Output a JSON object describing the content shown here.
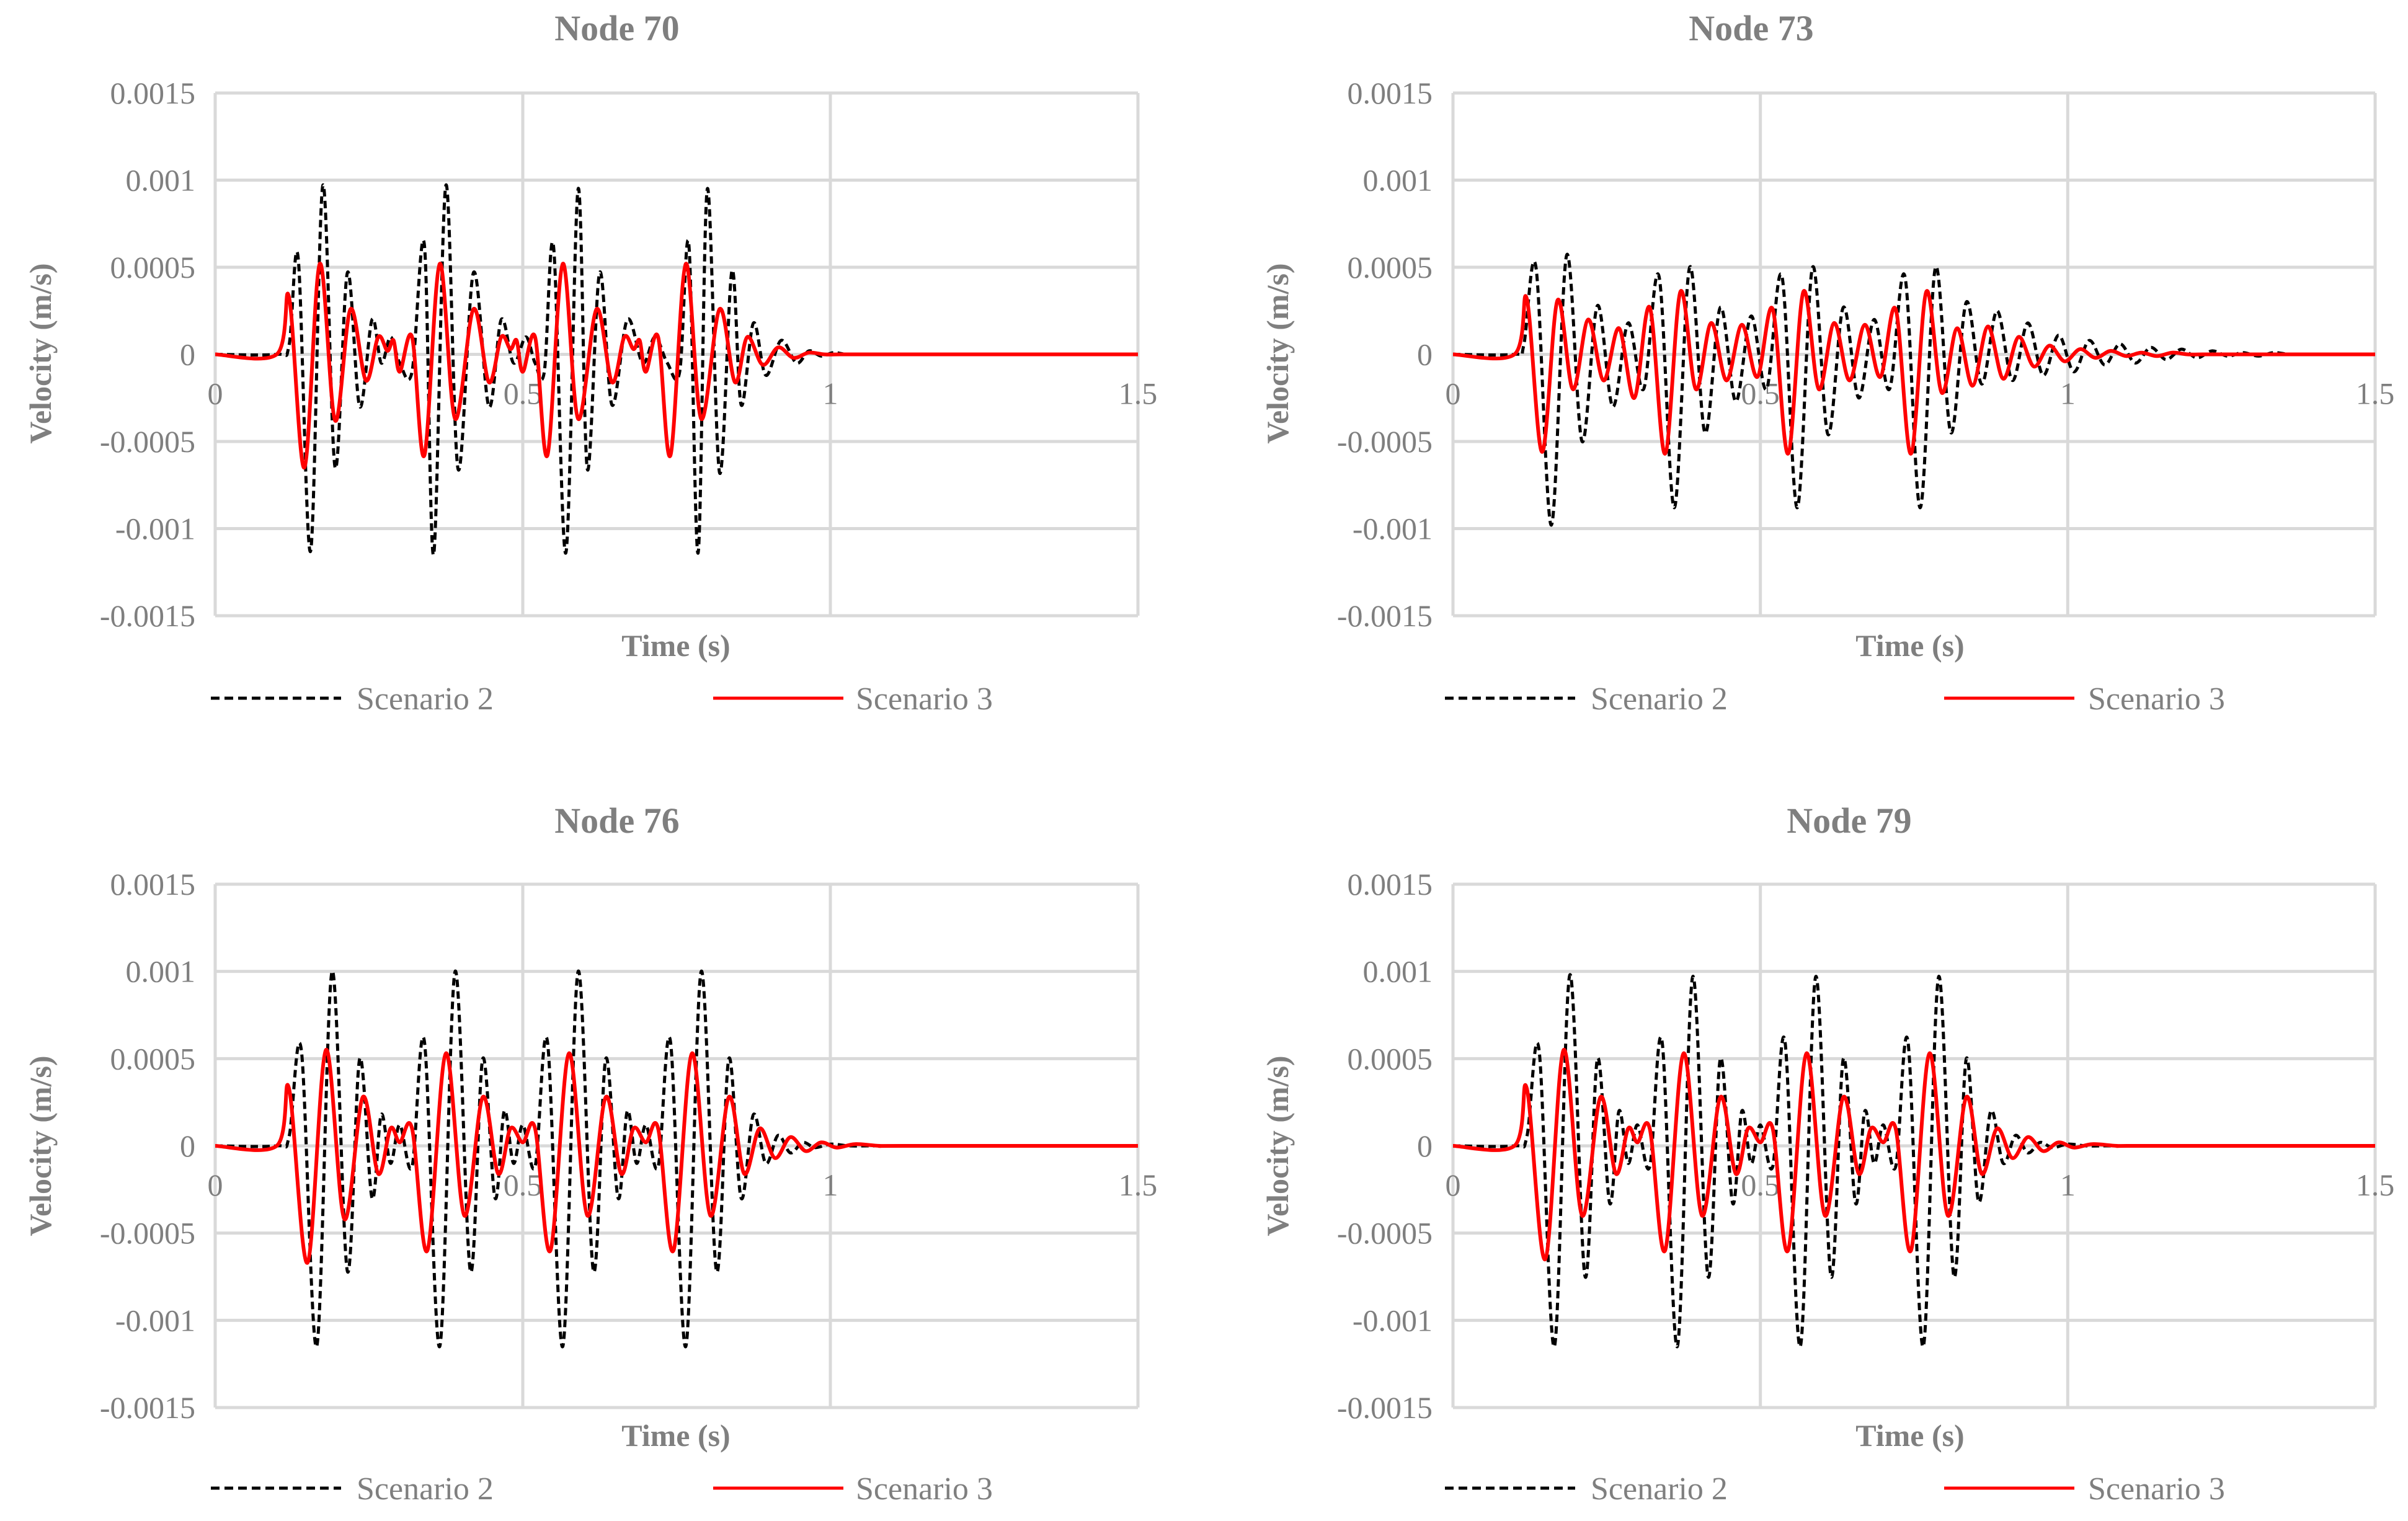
{
  "chart_data": [
    {
      "type": "line",
      "title": "Node 70",
      "xlabel": "Time (s)",
      "ylabel": "Velocity (m/s)",
      "xlim": [
        0,
        1.5
      ],
      "ylim": [
        -0.0015,
        0.0015
      ],
      "xticks": [
        "0",
        "0.5",
        "1",
        "1.5"
      ],
      "yticks": [
        "0.0015",
        "0.001",
        "0.0005",
        "0",
        "-0.0005",
        "-0.001",
        "-0.0015"
      ],
      "legend_position": "bottom",
      "grid": true,
      "series": [
        {
          "name": "Scenario 2",
          "color": "#000000",
          "style": "dashed",
          "x": [
            0,
            0.1,
            0.12,
            0.135,
            0.155,
            0.175,
            0.195,
            0.215,
            0.235,
            0.255,
            0.27,
            0.285,
            0.3,
            0.32,
            0.34,
            0.355,
            0.375,
            0.395,
            0.42,
            0.445,
            0.465,
            0.485,
            0.505,
            0.52,
            0.535,
            0.55,
            0.57,
            0.59,
            0.605,
            0.625,
            0.645,
            0.67,
            0.695,
            0.715,
            0.735,
            0.755,
            0.77,
            0.785,
            0.8,
            0.82,
            0.84,
            0.855,
            0.875,
            0.895,
            0.92,
            0.945,
            0.965,
            0.985,
            1.005,
            1.025,
            1.045,
            1.065,
            1.085,
            1.105,
            1.125,
            1.145,
            1.165,
            1.2,
            1.25,
            1.5
          ],
          "y": [
            0,
            0,
            5e-05,
            0.00055,
            -0.00113,
            0.00097,
            -0.00065,
            0.00047,
            -0.0003,
            0.0002,
            -5e-05,
            0.0001,
            -5e-05,
            -0.0001,
            0.00063,
            -0.00115,
            0.00097,
            -0.00066,
            0.00047,
            -0.0003,
            0.0002,
            -5e-05,
            0.0001,
            -5e-05,
            -0.0001,
            0.00062,
            -0.00114,
            0.00095,
            -0.00066,
            0.00047,
            -0.00029,
            0.0002,
            -5e-05,
            0.0001,
            -5e-05,
            -0.0001,
            0.00063,
            -0.00114,
            0.00095,
            -0.00068,
            0.00048,
            -0.00029,
            0.00018,
            -0.00012,
            8e-05,
            -5e-05,
            2e-05,
            -1e-05,
            1e-05,
            0,
            0,
            0,
            0,
            0,
            0,
            0,
            0,
            0,
            0,
            0
          ]
        },
        {
          "name": "Scenario 3",
          "color": "#ff0000",
          "style": "solid",
          "x": [
            0,
            0.1,
            0.12,
            0.145,
            0.17,
            0.195,
            0.22,
            0.245,
            0.265,
            0.28,
            0.29,
            0.3,
            0.32,
            0.34,
            0.365,
            0.39,
            0.42,
            0.445,
            0.465,
            0.48,
            0.49,
            0.5,
            0.52,
            0.54,
            0.565,
            0.59,
            0.62,
            0.645,
            0.665,
            0.68,
            0.69,
            0.7,
            0.72,
            0.74,
            0.765,
            0.79,
            0.82,
            0.845,
            0.865,
            0.89,
            0.915,
            0.94,
            0.965,
            0.99,
            1.015,
            1.04,
            1.065,
            1.1,
            1.15,
            1.5
          ],
          "y": [
            0,
            0,
            0.00033,
            -0.00065,
            0.00052,
            -0.00038,
            0.00026,
            -0.00015,
            0.0001,
            2e-05,
            8e-05,
            -0.0001,
            0.0001,
            -0.00058,
            0.00052,
            -0.00037,
            0.00026,
            -0.00016,
            0.0001,
            3e-05,
            8e-05,
            -0.0001,
            0.0001,
            -0.00058,
            0.00052,
            -0.00037,
            0.00026,
            -0.00016,
            0.0001,
            3e-05,
            8e-05,
            -0.0001,
            0.0001,
            -0.00058,
            0.00052,
            -0.00037,
            0.00026,
            -0.00016,
            0.0001,
            -6e-05,
            4e-05,
            -2e-05,
            1e-05,
            0,
            0,
            0,
            0,
            0,
            0,
            0
          ]
        }
      ]
    },
    {
      "type": "line",
      "title": "Node 73",
      "xlabel": "Time (s)",
      "ylabel": "Velocity (m/s)",
      "xlim": [
        0,
        1.5
      ],
      "ylim": [
        -0.0015,
        0.0015
      ],
      "xticks": [
        "0",
        "0.5",
        "1",
        "1.5"
      ],
      "yticks": [
        "0.0015",
        "0.001",
        "0.0005",
        "0",
        "-0.0005",
        "-0.001",
        "-0.0015"
      ],
      "legend_position": "bottom",
      "grid": true,
      "series": [
        {
          "name": "Scenario 2",
          "color": "#000000",
          "style": "dashed",
          "x": [
            0,
            0.1,
            0.115,
            0.135,
            0.16,
            0.185,
            0.21,
            0.235,
            0.26,
            0.285,
            0.31,
            0.335,
            0.36,
            0.385,
            0.41,
            0.435,
            0.46,
            0.485,
            0.51,
            0.535,
            0.56,
            0.585,
            0.61,
            0.635,
            0.66,
            0.685,
            0.71,
            0.735,
            0.76,
            0.785,
            0.81,
            0.835,
            0.86,
            0.885,
            0.91,
            0.935,
            0.96,
            0.985,
            1.01,
            1.035,
            1.06,
            1.085,
            1.11,
            1.135,
            1.16,
            1.185,
            1.21,
            1.235,
            1.26,
            1.285,
            1.31,
            1.335,
            1.36,
            1.385,
            1.41,
            1.435,
            1.46,
            1.5
          ],
          "y": [
            0,
            0,
            5e-05,
            0.0005,
            -0.00098,
            0.00057,
            -0.0005,
            0.00028,
            -0.0003,
            0.00018,
            -0.0002,
            0.00045,
            -0.00088,
            0.0005,
            -0.00045,
            0.00027,
            -0.00027,
            0.00022,
            -0.0002,
            0.00045,
            -0.00088,
            0.0005,
            -0.00046,
            0.00027,
            -0.00025,
            0.0002,
            -0.0002,
            0.00045,
            -0.00088,
            0.0005,
            -0.00045,
            0.0003,
            -0.00017,
            0.00025,
            -0.00015,
            0.00018,
            -0.00012,
            0.00011,
            -0.0001,
            8e-05,
            -6e-05,
            6e-05,
            -5e-05,
            4e-05,
            -3e-05,
            3e-05,
            -2e-05,
            2e-05,
            -1e-05,
            1e-05,
            -1e-05,
            1e-05,
            0,
            0,
            0,
            0,
            0,
            0
          ]
        },
        {
          "name": "Scenario 3",
          "color": "#ff0000",
          "style": "solid",
          "x": [
            0,
            0.1,
            0.12,
            0.145,
            0.17,
            0.195,
            0.22,
            0.245,
            0.27,
            0.295,
            0.32,
            0.345,
            0.37,
            0.395,
            0.42,
            0.445,
            0.47,
            0.495,
            0.52,
            0.545,
            0.57,
            0.595,
            0.62,
            0.645,
            0.67,
            0.695,
            0.72,
            0.745,
            0.77,
            0.795,
            0.82,
            0.845,
            0.87,
            0.895,
            0.92,
            0.945,
            0.97,
            0.995,
            1.02,
            1.045,
            1.07,
            1.095,
            1.12,
            1.145,
            1.17,
            1.195,
            1.22,
            1.245,
            1.27,
            1.3,
            1.35,
            1.4,
            1.5
          ],
          "y": [
            0,
            0,
            0.00032,
            -0.00056,
            0.00031,
            -0.0002,
            0.0002,
            -0.00015,
            0.00015,
            -0.00025,
            0.00027,
            -0.00057,
            0.00036,
            -0.0002,
            0.00018,
            -0.00015,
            0.00017,
            -0.00013,
            0.00026,
            -0.00057,
            0.00036,
            -0.0002,
            0.00018,
            -0.00015,
            0.00017,
            -0.00013,
            0.00026,
            -0.00057,
            0.00036,
            -0.00022,
            0.00015,
            -0.00018,
            0.00016,
            -0.00014,
            0.0001,
            -7e-05,
            5e-05,
            -4e-05,
            3e-05,
            -2e-05,
            2e-05,
            -1e-05,
            1e-05,
            -1e-05,
            1e-05,
            0,
            0,
            0,
            0,
            0,
            0,
            0,
            0
          ]
        }
      ]
    },
    {
      "type": "line",
      "title": "Node 76",
      "xlabel": "Time (s)",
      "ylabel": "Velocity (m/s)",
      "xlim": [
        0,
        1.5
      ],
      "ylim": [
        -0.0015,
        0.0015
      ],
      "xticks": [
        "0",
        "0.5",
        "1",
        "1.5"
      ],
      "yticks": [
        "0.0015",
        "0.001",
        "0.0005",
        "0",
        "-0.0005",
        "-0.001",
        "-0.0015"
      ],
      "legend_position": "bottom",
      "grid": true,
      "series": [
        {
          "name": "Scenario 2",
          "color": "#000000",
          "style": "dashed",
          "x": [
            0,
            0.1,
            0.12,
            0.14,
            0.165,
            0.19,
            0.215,
            0.235,
            0.255,
            0.27,
            0.285,
            0.3,
            0.32,
            0.34,
            0.365,
            0.39,
            0.415,
            0.435,
            0.455,
            0.47,
            0.485,
            0.5,
            0.52,
            0.54,
            0.565,
            0.59,
            0.615,
            0.635,
            0.655,
            0.67,
            0.685,
            0.7,
            0.72,
            0.74,
            0.765,
            0.79,
            0.815,
            0.835,
            0.855,
            0.875,
            0.895,
            0.915,
            0.935,
            0.955,
            0.975,
            1.0,
            1.03,
            1.06,
            1.1,
            1.15,
            1.2,
            1.5
          ],
          "y": [
            0,
            0,
            5e-05,
            0.00055,
            -0.00115,
            0.001,
            -0.00072,
            0.0005,
            -0.0003,
            0.00018,
            -0.0001,
            0.00012,
            -0.00012,
            0.0006,
            -0.00115,
            0.001,
            -0.00072,
            0.0005,
            -0.0003,
            0.0002,
            -0.0001,
            0.00012,
            -0.00012,
            0.0006,
            -0.00115,
            0.001,
            -0.00072,
            0.0005,
            -0.0003,
            0.0002,
            -0.0001,
            0.00012,
            -0.00012,
            0.0006,
            -0.00115,
            0.001,
            -0.00072,
            0.0005,
            -0.0003,
            0.00018,
            -0.0001,
            6e-05,
            -4e-05,
            2e-05,
            -1e-05,
            1e-05,
            0,
            0,
            0,
            0,
            0,
            0
          ]
        },
        {
          "name": "Scenario 3",
          "color": "#ff0000",
          "style": "solid",
          "x": [
            0,
            0.1,
            0.12,
            0.15,
            0.18,
            0.21,
            0.24,
            0.265,
            0.285,
            0.3,
            0.32,
            0.345,
            0.375,
            0.405,
            0.435,
            0.46,
            0.48,
            0.5,
            0.52,
            0.545,
            0.575,
            0.605,
            0.635,
            0.66,
            0.68,
            0.7,
            0.72,
            0.745,
            0.775,
            0.805,
            0.835,
            0.86,
            0.885,
            0.91,
            0.935,
            0.96,
            0.985,
            1.01,
            1.04,
            1.08,
            1.12,
            1.5
          ],
          "y": [
            0,
            0,
            0.00033,
            -0.00067,
            0.00055,
            -0.00042,
            0.00028,
            -0.00016,
            0.0001,
            2e-05,
            0.0001,
            -0.0006,
            0.00053,
            -0.0004,
            0.00028,
            -0.00016,
            0.0001,
            2e-05,
            0.0001,
            -0.0006,
            0.00053,
            -0.0004,
            0.00028,
            -0.00016,
            0.0001,
            2e-05,
            0.0001,
            -0.0006,
            0.00053,
            -0.0004,
            0.00028,
            -0.00016,
            0.0001,
            -7e-05,
            5e-05,
            -3e-05,
            2e-05,
            -1e-05,
            1e-05,
            0,
            0,
            0
          ]
        }
      ]
    },
    {
      "type": "line",
      "title": "Node 79",
      "xlabel": "Time (s)",
      "ylabel": "Velocity (m/s)",
      "xlim": [
        0,
        1.5
      ],
      "ylim": [
        -0.0015,
        0.0015
      ],
      "xticks": [
        "0",
        "0.5",
        "1",
        "1.5"
      ],
      "yticks": [
        "0.0015",
        "0.001",
        "0.0005",
        "0",
        "-0.0005",
        "-0.001",
        "-0.0015"
      ],
      "legend_position": "bottom",
      "grid": true,
      "series": [
        {
          "name": "Scenario 2",
          "color": "#000000",
          "style": "dashed",
          "x": [
            0,
            0.1,
            0.12,
            0.14,
            0.165,
            0.19,
            0.215,
            0.235,
            0.255,
            0.27,
            0.285,
            0.3,
            0.32,
            0.34,
            0.365,
            0.39,
            0.415,
            0.435,
            0.455,
            0.47,
            0.485,
            0.5,
            0.52,
            0.54,
            0.565,
            0.59,
            0.615,
            0.635,
            0.655,
            0.67,
            0.685,
            0.7,
            0.72,
            0.74,
            0.765,
            0.79,
            0.815,
            0.835,
            0.855,
            0.875,
            0.895,
            0.915,
            0.935,
            0.955,
            0.975,
            1.0,
            1.03,
            1.06,
            1.1,
            1.15,
            1.2,
            1.5
          ],
          "y": [
            0,
            0,
            5e-05,
            0.00055,
            -0.00115,
            0.00098,
            -0.00075,
            0.0005,
            -0.00033,
            0.0002,
            -0.0001,
            0.00012,
            -0.00012,
            0.0006,
            -0.00115,
            0.00097,
            -0.00075,
            0.0005,
            -0.00033,
            0.0002,
            -0.0001,
            0.00012,
            -0.00012,
            0.0006,
            -0.00115,
            0.00097,
            -0.00075,
            0.0005,
            -0.00033,
            0.0002,
            -0.0001,
            0.00012,
            -0.00012,
            0.0006,
            -0.00115,
            0.00097,
            -0.00075,
            0.0005,
            -0.00032,
            0.0002,
            -0.0001,
            6e-05,
            -4e-05,
            2e-05,
            -1e-05,
            1e-05,
            0,
            0,
            0,
            0,
            0,
            0
          ]
        },
        {
          "name": "Scenario 3",
          "color": "#ff0000",
          "style": "solid",
          "x": [
            0,
            0.1,
            0.12,
            0.15,
            0.18,
            0.21,
            0.24,
            0.265,
            0.285,
            0.3,
            0.32,
            0.345,
            0.375,
            0.405,
            0.435,
            0.46,
            0.48,
            0.5,
            0.52,
            0.545,
            0.575,
            0.605,
            0.635,
            0.66,
            0.68,
            0.7,
            0.72,
            0.745,
            0.775,
            0.805,
            0.835,
            0.86,
            0.885,
            0.91,
            0.935,
            0.96,
            0.985,
            1.01,
            1.04,
            1.08,
            1.12,
            1.5
          ],
          "y": [
            0,
            0,
            0.00033,
            -0.00065,
            0.00055,
            -0.0004,
            0.00028,
            -0.00016,
            0.0001,
            2e-05,
            0.0001,
            -0.0006,
            0.00053,
            -0.0004,
            0.00028,
            -0.00016,
            0.0001,
            2e-05,
            0.0001,
            -0.0006,
            0.00053,
            -0.0004,
            0.00028,
            -0.00016,
            0.0001,
            2e-05,
            0.0001,
            -0.0006,
            0.00053,
            -0.0004,
            0.00028,
            -0.00016,
            0.0001,
            -7e-05,
            5e-05,
            -3e-05,
            2e-05,
            -1e-05,
            1e-05,
            0,
            0,
            0
          ]
        }
      ]
    }
  ]
}
